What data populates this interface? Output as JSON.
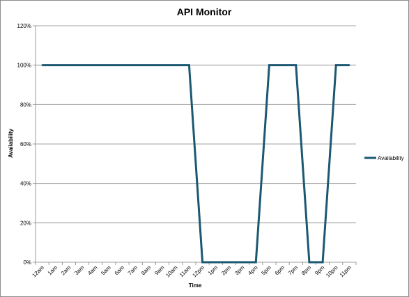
{
  "chart_data": {
    "type": "line",
    "title": "API Monitor",
    "xlabel": "Time",
    "ylabel": "Availability",
    "categories": [
      "12am",
      "1am",
      "2am",
      "3am",
      "4am",
      "5am",
      "6am",
      "7am",
      "8am",
      "9am",
      "10am",
      "11am",
      "12pm",
      "1pm",
      "2pm",
      "3pm",
      "4pm",
      "5pm",
      "6pm",
      "7pm",
      "8pm",
      "9pm",
      "10pm",
      "11pm"
    ],
    "series": [
      {
        "name": "Availability",
        "values": [
          100,
          100,
          100,
          100,
          100,
          100,
          100,
          100,
          100,
          100,
          100,
          100,
          0,
          0,
          0,
          0,
          0,
          100,
          100,
          100,
          0,
          0,
          100,
          100
        ]
      }
    ],
    "ylim": [
      0,
      120
    ],
    "yticks": [
      0,
      20,
      40,
      60,
      80,
      100,
      120
    ],
    "ytick_labels": [
      "0%",
      "20%",
      "40%",
      "60%",
      "80%",
      "100%",
      "120%"
    ],
    "grid": true,
    "legend": "right",
    "colors": {
      "series": "#1b5872",
      "grid": "#808080",
      "axis": "#808080"
    }
  }
}
